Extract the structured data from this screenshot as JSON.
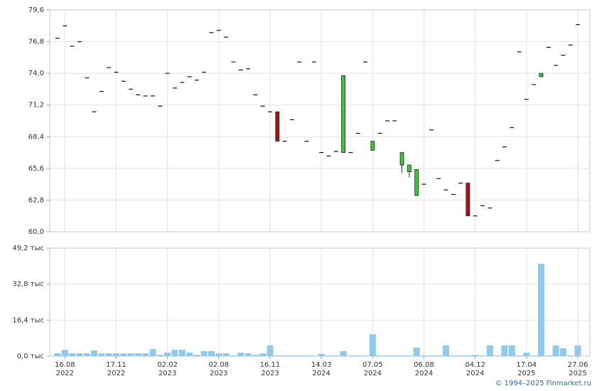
{
  "chart_data": [
    {
      "type": "candlestick",
      "up_color": "#33cc33",
      "down_color": "#aa1111",
      "dash_color": "#111111",
      "open": [
        77.1,
        78.2,
        76.4,
        76.8,
        73.6,
        70.6,
        72.4,
        74.5,
        74.1,
        73.3,
        72.6,
        72.1,
        72.0,
        72.0,
        71.1,
        74.0,
        72.7,
        73.2,
        73.7,
        73.4,
        74.1,
        77.6,
        77.8,
        77.2,
        75.0,
        74.3,
        74.4,
        72.1,
        71.1,
        70.6,
        70.6,
        68.0,
        69.9,
        75.0,
        68.0,
        75.0,
        67.0,
        66.7,
        67.1,
        67.0,
        67.0,
        68.7,
        75.0,
        67.2,
        68.7,
        69.8,
        69.8,
        65.9,
        65.3,
        63.2,
        64.2,
        69.0,
        64.7,
        63.7,
        63.3,
        64.3,
        64.3,
        61.4,
        62.3,
        62.1,
        66.3,
        67.5,
        69.2,
        75.9,
        71.7,
        73.0,
        73.7,
        76.3,
        74.7,
        75.6,
        76.5,
        78.3
      ],
      "high": [
        77.1,
        78.2,
        76.4,
        76.8,
        73.6,
        70.6,
        72.4,
        74.5,
        74.1,
        73.3,
        72.6,
        72.1,
        72.0,
        72.0,
        71.1,
        74.0,
        72.7,
        73.2,
        73.7,
        73.4,
        74.1,
        77.6,
        77.8,
        77.2,
        75.0,
        74.3,
        74.4,
        72.1,
        71.1,
        70.6,
        70.6,
        68.0,
        69.9,
        75.0,
        68.0,
        75.0,
        67.0,
        66.7,
        67.1,
        73.8,
        67.0,
        68.7,
        75.0,
        68.0,
        68.7,
        69.8,
        69.8,
        67.0,
        65.9,
        65.5,
        64.2,
        69.0,
        64.7,
        63.7,
        63.3,
        64.3,
        64.3,
        61.4,
        62.3,
        62.1,
        66.3,
        67.5,
        69.2,
        75.9,
        71.7,
        73.0,
        74.0,
        76.3,
        74.7,
        75.6,
        76.5,
        78.3
      ],
      "low": [
        77.1,
        78.2,
        76.4,
        76.8,
        73.6,
        70.6,
        72.4,
        74.5,
        74.1,
        73.3,
        72.6,
        72.1,
        72.0,
        72.0,
        71.1,
        74.0,
        72.7,
        73.2,
        73.7,
        73.4,
        74.1,
        77.6,
        77.8,
        77.2,
        75.0,
        74.3,
        74.4,
        72.1,
        71.1,
        70.6,
        68.0,
        68.0,
        69.9,
        75.0,
        68.0,
        75.0,
        67.0,
        66.7,
        67.1,
        67.0,
        67.0,
        68.7,
        75.0,
        67.2,
        68.7,
        69.8,
        69.8,
        65.2,
        64.8,
        63.2,
        64.2,
        69.0,
        64.7,
        63.7,
        63.3,
        64.3,
        61.4,
        61.4,
        62.3,
        62.1,
        66.3,
        67.5,
        69.2,
        75.9,
        71.7,
        73.0,
        73.7,
        76.3,
        74.7,
        75.6,
        76.5,
        78.3
      ],
      "close": [
        77.1,
        78.2,
        76.4,
        76.8,
        73.6,
        70.6,
        72.4,
        74.5,
        74.1,
        73.3,
        72.6,
        72.1,
        72.0,
        72.0,
        71.1,
        74.0,
        72.7,
        73.2,
        73.7,
        73.4,
        74.1,
        77.6,
        77.8,
        77.2,
        75.0,
        74.3,
        74.4,
        72.1,
        71.1,
        70.6,
        68.0,
        68.0,
        69.9,
        75.0,
        68.0,
        75.0,
        67.0,
        66.7,
        67.1,
        73.8,
        67.0,
        68.7,
        75.0,
        68.0,
        68.7,
        69.8,
        69.8,
        67.0,
        65.9,
        65.5,
        64.2,
        69.0,
        64.7,
        63.7,
        63.3,
        64.3,
        61.4,
        61.4,
        62.3,
        62.1,
        66.3,
        67.5,
        69.2,
        75.9,
        71.7,
        73.0,
        74.0,
        76.3,
        74.7,
        75.6,
        76.5,
        78.3
      ],
      "ylim": [
        60,
        79.6
      ],
      "yticks": [
        {
          "value": 60,
          "label": "60,0"
        },
        {
          "value": 62.8,
          "label": "62,8"
        },
        {
          "value": 65.6,
          "label": "65,6"
        },
        {
          "value": 68.4,
          "label": "68,4"
        },
        {
          "value": 71.2,
          "label": "71,2"
        },
        {
          "value": 74,
          "label": "74,0"
        },
        {
          "value": 76.8,
          "label": "76,8"
        },
        {
          "value": 79.6,
          "label": "79,6"
        }
      ],
      "grid": true
    },
    {
      "type": "bar",
      "color": "#8ec9f0",
      "categories": [
        null,
        "16.08\n2022",
        null,
        null,
        null,
        null,
        null,
        null,
        "17.11\n2022",
        null,
        null,
        null,
        null,
        null,
        null,
        "02.02\n2023",
        null,
        null,
        null,
        null,
        null,
        null,
        "02.08\n2023",
        null,
        null,
        null,
        null,
        null,
        null,
        "16.11\n2023",
        null,
        null,
        null,
        null,
        null,
        null,
        "14.03\n2024",
        null,
        null,
        null,
        null,
        null,
        null,
        "07.05\n2024",
        null,
        null,
        null,
        null,
        null,
        null,
        "06.08\n2024",
        null,
        null,
        null,
        null,
        null,
        null,
        "04.12\n2024",
        null,
        null,
        null,
        null,
        null,
        null,
        "17.04\n2025",
        null,
        null,
        null,
        null,
        null,
        null,
        "27.06\n2025"
      ],
      "values": [
        1.3,
        2.9,
        1.3,
        1.3,
        1.3,
        2.6,
        1.3,
        1.3,
        1.3,
        1.3,
        1.3,
        1.3,
        1.3,
        3.2,
        0.6,
        1.6,
        2.9,
        2.9,
        1.6,
        0.6,
        2.3,
        2.3,
        1.3,
        1.3,
        0.3,
        1.6,
        1.3,
        0.6,
        1.3,
        4.9,
        0.3,
        0.3,
        0.3,
        0.3,
        0.3,
        0.3,
        1.0,
        0.3,
        0.3,
        2.3,
        0.3,
        0.3,
        0.3,
        10.0,
        0.3,
        0.3,
        0.3,
        0.3,
        0.3,
        3.9,
        0.3,
        0.3,
        0.3,
        4.9,
        0.3,
        0.3,
        0.3,
        0.6,
        0.3,
        4.9,
        0.3,
        4.9,
        4.9,
        0.3,
        1.6,
        0.3,
        42.1,
        0.3,
        4.9,
        3.6,
        0.3,
        4.9
      ],
      "ylim": [
        0,
        49.2
      ],
      "yticks": [
        {
          "value": 0,
          "label": "0,0 тыс"
        },
        {
          "value": 16.4,
          "label": "16,4 тыс"
        },
        {
          "value": 32.8,
          "label": "32,8 тыс"
        },
        {
          "value": 49.2,
          "label": "49,2 тыс"
        }
      ],
      "grid": true
    }
  ],
  "source": "© 1994–2025 Finmarket.ru"
}
